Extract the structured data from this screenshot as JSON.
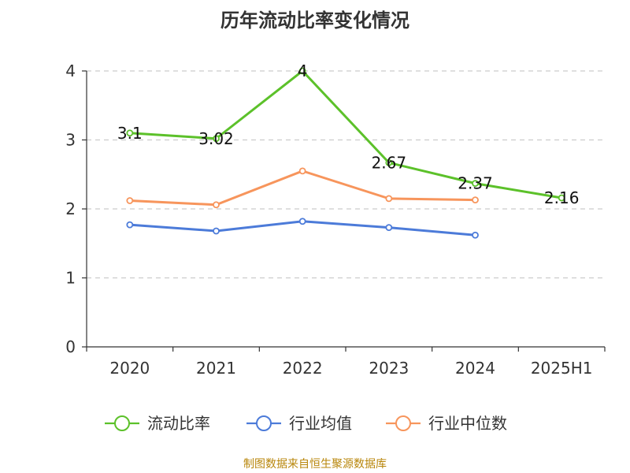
{
  "chart_data": {
    "type": "line",
    "title": "历年流动比率变化情况",
    "categories": [
      "2020",
      "2021",
      "2022",
      "2023",
      "2024",
      "2025H1"
    ],
    "ylim": [
      0,
      4
    ],
    "yticks": [
      "0",
      "1",
      "2",
      "3",
      "4"
    ],
    "grid": true,
    "legend_position": "bottom",
    "series": [
      {
        "name": "流动比率",
        "color": "#5cc12a",
        "values": [
          3.1,
          3.02,
          4,
          2.67,
          2.37,
          2.16
        ],
        "labels": [
          "3.1",
          "3.02",
          "4",
          "2.67",
          "2.37",
          "2.16"
        ]
      },
      {
        "name": "行业均值",
        "color": "#4c7bd9",
        "values": [
          1.77,
          1.68,
          1.82,
          1.73,
          1.62,
          null
        ]
      },
      {
        "name": "行业中位数",
        "color": "#f7955c",
        "values": [
          2.12,
          2.06,
          2.55,
          2.15,
          2.13,
          null
        ]
      }
    ]
  },
  "footer": "制图数据来自恒生聚源数据库"
}
